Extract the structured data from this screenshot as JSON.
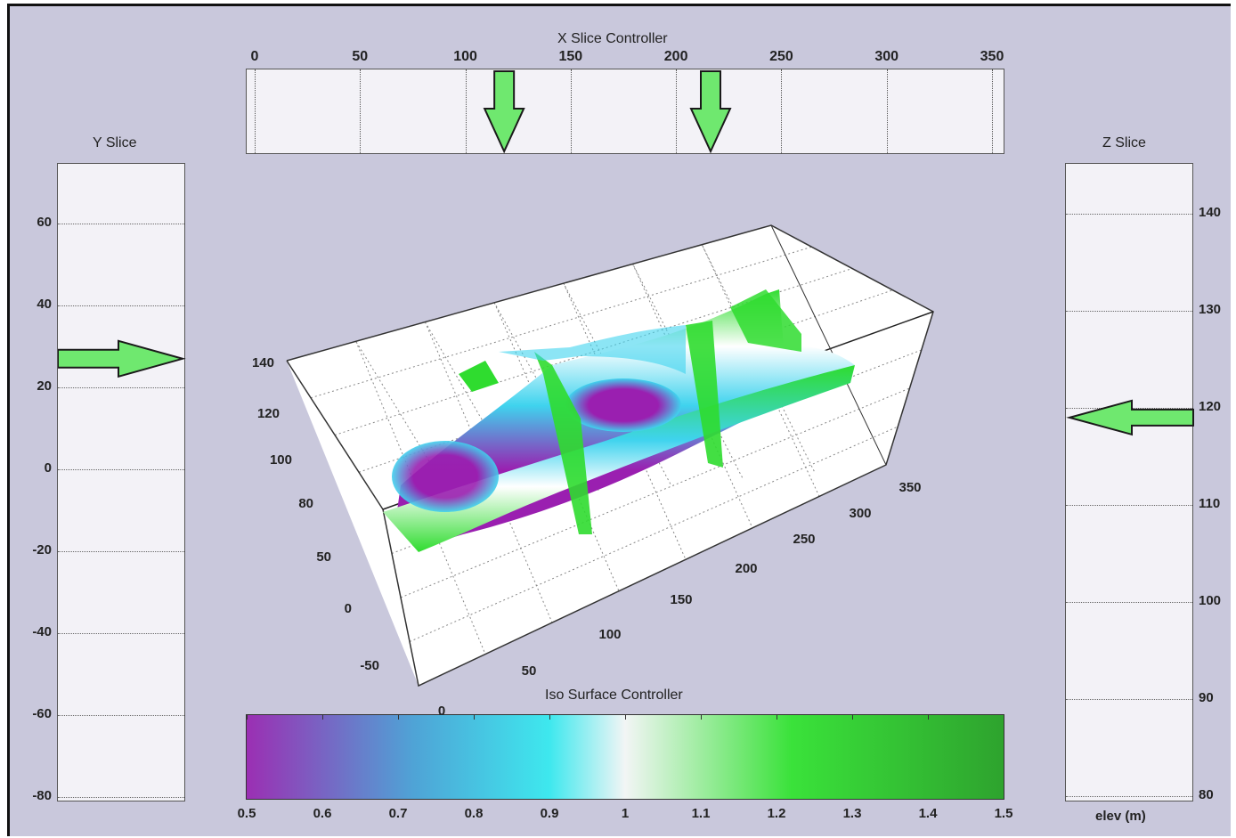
{
  "x_controller": {
    "title": "X Slice Controller",
    "ticks": [
      "0",
      "50",
      "100",
      "150",
      "200",
      "250",
      "300",
      "350"
    ],
    "markers": [
      118,
      216
    ]
  },
  "y_slice": {
    "title": "Y Slice",
    "ticks": [
      "60",
      "40",
      "20",
      "0",
      "-20",
      "-40",
      "-60",
      "-80"
    ],
    "marker_value": 27
  },
  "z_slice": {
    "title": "Z Slice",
    "ticks": [
      "140",
      "130",
      "120",
      "110",
      "100",
      "90",
      "80"
    ],
    "axis_label": "elev (m)",
    "marker_value": 119
  },
  "iso_controller": {
    "title": "Iso Surface Controller",
    "ticks": [
      "0.5",
      "0.6",
      "0.7",
      "0.8",
      "0.9",
      "1",
      "1.1",
      "1.2",
      "1.3",
      "1.4",
      "1.5"
    ],
    "colors": [
      "#9b2fb3",
      "#4fa3d6",
      "#3ee8ee",
      "#f2f5f5",
      "#3ae23a",
      "#2ea32e"
    ]
  },
  "plot3d": {
    "z_ticks": [
      "140",
      "120",
      "100",
      "80"
    ],
    "y_ticks": [
      "50",
      "0",
      "-50"
    ],
    "x_ticks": [
      "0",
      "50",
      "100",
      "150",
      "200",
      "250",
      "300",
      "350"
    ],
    "colors": {
      "purple": "#9a1fb0",
      "cyan": "#3fd3ee",
      "green": "#2fdc2f",
      "white": "#ffffff"
    }
  },
  "colors": {
    "background": "#c9c8dc",
    "panel": "#f3f2f7",
    "arrow_fill": "#6fe86f",
    "arrow_stroke": "#1a1a1a"
  }
}
